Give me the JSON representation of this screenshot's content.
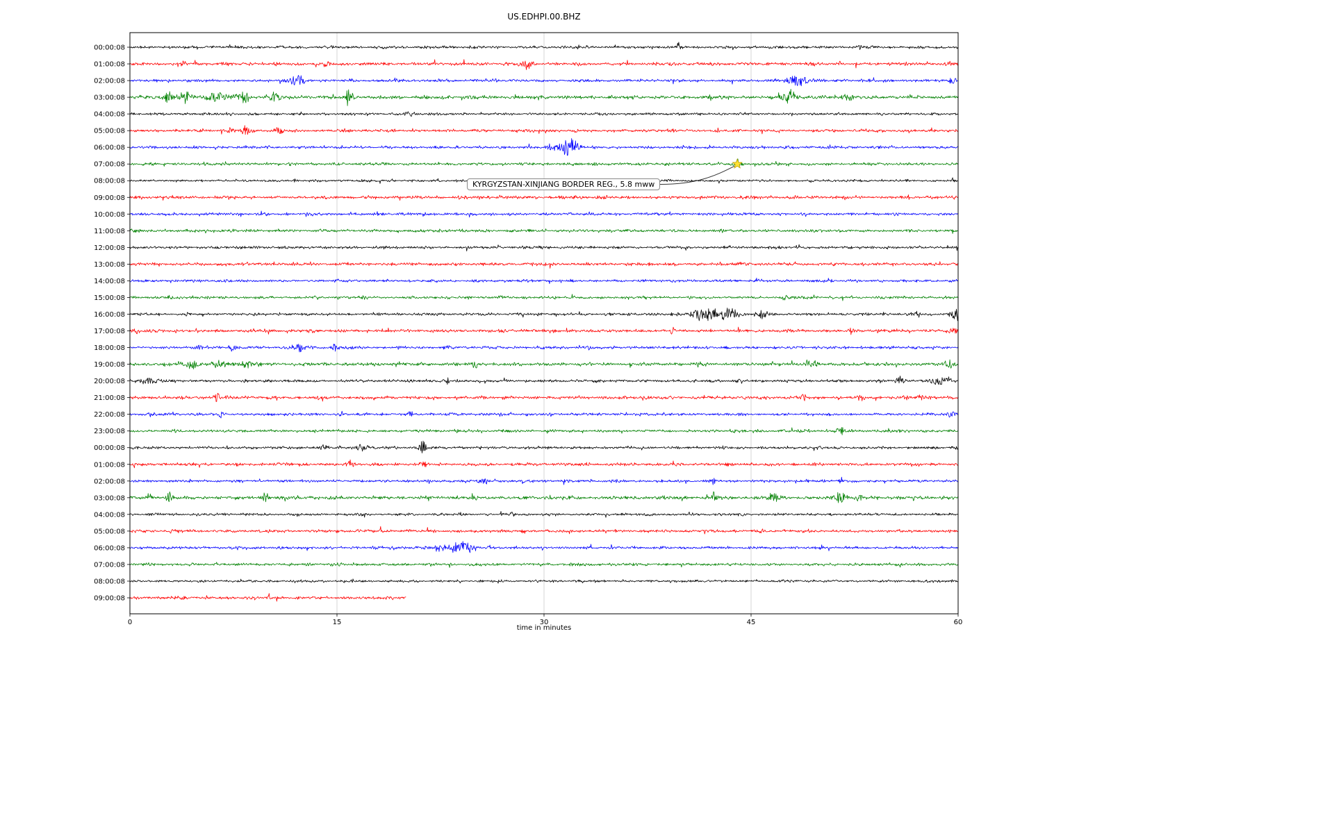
{
  "figure": {
    "title": "US.EDHPI.00.BHZ",
    "xlabel": "time in minutes"
  },
  "chart_data": {
    "type": "seismogram",
    "title": "US.EDHPI.00.BHZ",
    "xlabel": "time in minutes",
    "x_range": [
      0,
      60
    ],
    "x_ticks": [
      "0",
      "15",
      "30",
      "45",
      "60"
    ],
    "x_tick_values": [
      0,
      15,
      30,
      45,
      60
    ],
    "grid_x": [
      15,
      30,
      45
    ],
    "grid_on": true,
    "colors": {
      "black": "#000000",
      "red": "#ff0000",
      "blue": "#0000ff",
      "green": "#008000"
    },
    "annotation": {
      "text": "KYRGYZSTAN-XINJIANG BORDER REG., 5.8 mww",
      "star_x_minutes": 44.0,
      "star_row_index": 7,
      "star_color": "#ffe135"
    },
    "rows": [
      {
        "label": "00:00:08",
        "color": "black",
        "noise": 1.0,
        "end": 60,
        "events": [
          [
            39.7,
            7,
            0.15
          ],
          [
            52.8,
            4,
            0.2
          ],
          [
            57.2,
            3,
            0.3
          ]
        ]
      },
      {
        "label": "01:00:08",
        "color": "red",
        "noise": 1.15,
        "end": 60,
        "events": [
          [
            28.7,
            8,
            0.5
          ],
          [
            14.3,
            4,
            0.25
          ],
          [
            4.0,
            3,
            0.3
          ]
        ]
      },
      {
        "label": "02:00:08",
        "color": "blue",
        "noise": 1.0,
        "end": 60,
        "events": [
          [
            12.2,
            8,
            0.6
          ],
          [
            48.3,
            9,
            0.8
          ],
          [
            59.6,
            5,
            0.3
          ]
        ]
      },
      {
        "label": "03:00:08",
        "color": "green",
        "noise": 1.3,
        "end": 60,
        "events": [
          [
            2.8,
            8,
            0.4
          ],
          [
            4.0,
            9,
            0.5
          ],
          [
            6.3,
            7,
            0.8
          ],
          [
            8.3,
            8,
            0.5
          ],
          [
            10.5,
            6,
            0.4
          ],
          [
            15.8,
            12,
            0.3
          ],
          [
            47.8,
            12,
            0.5
          ],
          [
            52.0,
            5,
            0.4
          ]
        ]
      },
      {
        "label": "04:00:08",
        "color": "black",
        "noise": 0.9,
        "end": 60,
        "events": [
          [
            20.3,
            5,
            0.3
          ],
          [
            21.8,
            4,
            0.2
          ]
        ]
      },
      {
        "label": "05:00:08",
        "color": "red",
        "noise": 1.05,
        "end": 60,
        "events": [
          [
            8.4,
            9,
            0.3
          ],
          [
            10.8,
            5,
            0.3
          ],
          [
            7.3,
            4,
            0.3
          ]
        ]
      },
      {
        "label": "06:00:08",
        "color": "blue",
        "noise": 1.0,
        "end": 60,
        "events": [
          [
            31.8,
            13,
            0.7
          ],
          [
            30.5,
            5,
            0.4
          ]
        ]
      },
      {
        "label": "07:00:08",
        "color": "green",
        "noise": 1.0,
        "end": 60,
        "events": [
          [
            44.0,
            3,
            0.5
          ]
        ]
      },
      {
        "label": "08:00:08",
        "color": "black",
        "noise": 0.85,
        "end": 60,
        "events": []
      },
      {
        "label": "09:00:08",
        "color": "red",
        "noise": 1.15,
        "end": 60,
        "events": []
      },
      {
        "label": "10:00:08",
        "color": "blue",
        "noise": 1.0,
        "end": 60,
        "events": [
          [
            18.0,
            3,
            0.3
          ]
        ]
      },
      {
        "label": "11:00:08",
        "color": "green",
        "noise": 1.0,
        "end": 60,
        "events": []
      },
      {
        "label": "12:00:08",
        "color": "black",
        "noise": 1.0,
        "end": 60,
        "events": []
      },
      {
        "label": "13:00:08",
        "color": "red",
        "noise": 1.15,
        "end": 60,
        "events": []
      },
      {
        "label": "14:00:08",
        "color": "blue",
        "noise": 1.0,
        "end": 60,
        "events": []
      },
      {
        "label": "15:00:08",
        "color": "green",
        "noise": 1.0,
        "end": 60,
        "events": [
          [
            47.5,
            4,
            0.3
          ]
        ]
      },
      {
        "label": "16:00:08",
        "color": "black",
        "noise": 1.0,
        "end": 60,
        "events": [
          [
            41.8,
            10,
            1.2
          ],
          [
            43.5,
            8,
            0.8
          ],
          [
            45.8,
            6,
            0.5
          ],
          [
            57.0,
            4,
            0.3
          ],
          [
            59.8,
            9,
            0.4
          ]
        ]
      },
      {
        "label": "17:00:08",
        "color": "red",
        "noise": 1.15,
        "end": 60,
        "events": [
          [
            0.5,
            4,
            0.3
          ],
          [
            39.3,
            6,
            0.2
          ],
          [
            52.3,
            5,
            0.3
          ],
          [
            59.7,
            6,
            0.3
          ]
        ]
      },
      {
        "label": "18:00:08",
        "color": "blue",
        "noise": 1.0,
        "end": 60,
        "events": [
          [
            5.0,
            4,
            0.3
          ],
          [
            7.5,
            5,
            0.4
          ],
          [
            12.2,
            7,
            0.5
          ],
          [
            14.9,
            6,
            0.3
          ]
        ]
      },
      {
        "label": "19:00:08",
        "color": "green",
        "noise": 1.2,
        "end": 60,
        "events": [
          [
            4.6,
            6,
            0.5
          ],
          [
            6.5,
            5,
            0.6
          ],
          [
            8.5,
            5,
            0.5
          ],
          [
            25.0,
            5,
            0.3
          ],
          [
            41.0,
            4,
            0.3
          ],
          [
            49.3,
            6,
            0.5
          ],
          [
            59.3,
            6,
            0.4
          ]
        ]
      },
      {
        "label": "20:00:08",
        "color": "black",
        "noise": 1.0,
        "end": 60,
        "events": [
          [
            1.5,
            5,
            0.8
          ],
          [
            23.0,
            5,
            0.2
          ],
          [
            55.8,
            7,
            0.3
          ],
          [
            58.5,
            7,
            0.5
          ],
          [
            59.3,
            6,
            0.3
          ]
        ]
      },
      {
        "label": "21:00:08",
        "color": "red",
        "noise": 1.15,
        "end": 60,
        "events": [
          [
            6.3,
            7,
            0.2
          ],
          [
            48.8,
            5,
            0.3
          ],
          [
            53.0,
            4,
            0.3
          ],
          [
            57.3,
            5,
            0.3
          ]
        ]
      },
      {
        "label": "22:00:08",
        "color": "blue",
        "noise": 1.0,
        "end": 60,
        "events": [
          [
            6.6,
            6,
            0.2
          ],
          [
            15.3,
            4,
            0.2
          ],
          [
            20.3,
            5,
            0.2
          ],
          [
            59.6,
            7,
            0.3
          ]
        ]
      },
      {
        "label": "23:00:08",
        "color": "green",
        "noise": 1.0,
        "end": 60,
        "events": [
          [
            44.0,
            3,
            0.3
          ],
          [
            51.5,
            7,
            0.3
          ]
        ]
      },
      {
        "label": "00:00:08",
        "color": "black",
        "noise": 1.0,
        "end": 60,
        "events": [
          [
            14.0,
            4,
            0.3
          ],
          [
            16.8,
            5,
            0.5
          ],
          [
            21.2,
            12,
            0.25
          ]
        ]
      },
      {
        "label": "01:00:08",
        "color": "red",
        "noise": 1.1,
        "end": 60,
        "events": [
          [
            16.0,
            6,
            0.3
          ],
          [
            21.3,
            5,
            0.2
          ]
        ]
      },
      {
        "label": "02:00:08",
        "color": "blue",
        "noise": 1.0,
        "end": 60,
        "events": [
          [
            25.8,
            6,
            0.4
          ],
          [
            42.3,
            7,
            0.15
          ],
          [
            51.5,
            7,
            0.15
          ]
        ]
      },
      {
        "label": "03:00:08",
        "color": "green",
        "noise": 1.2,
        "end": 60,
        "events": [
          [
            2.8,
            8,
            0.2
          ],
          [
            9.8,
            7,
            0.3
          ],
          [
            42.3,
            8,
            0.2
          ],
          [
            46.8,
            7,
            0.5
          ],
          [
            51.5,
            8,
            0.5
          ],
          [
            52.8,
            6,
            0.3
          ]
        ]
      },
      {
        "label": "04:00:08",
        "color": "black",
        "noise": 0.9,
        "end": 60,
        "events": [
          [
            27.7,
            5,
            0.2
          ]
        ]
      },
      {
        "label": "05:00:08",
        "color": "red",
        "noise": 1.05,
        "end": 60,
        "events": []
      },
      {
        "label": "06:00:08",
        "color": "blue",
        "noise": 1.0,
        "end": 60,
        "events": [
          [
            22.5,
            5,
            0.5
          ],
          [
            24.0,
            12,
            0.8
          ]
        ]
      },
      {
        "label": "07:00:08",
        "color": "green",
        "noise": 1.0,
        "end": 60,
        "events": []
      },
      {
        "label": "08:00:08",
        "color": "black",
        "noise": 0.9,
        "end": 60,
        "events": []
      },
      {
        "label": "09:00:08",
        "color": "red",
        "noise": 1.1,
        "end": 20,
        "events": []
      }
    ]
  }
}
